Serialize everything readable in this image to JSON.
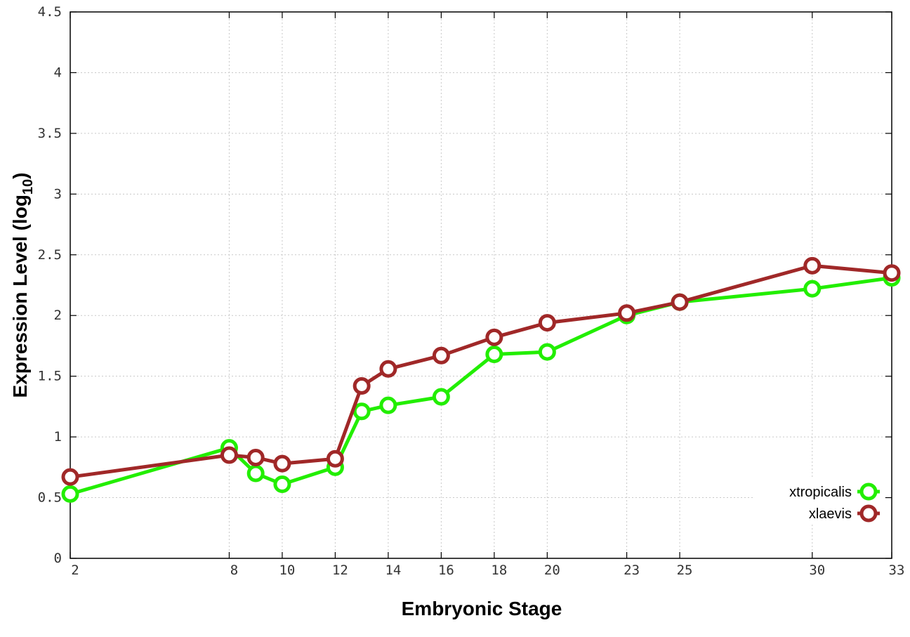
{
  "chart_data": {
    "type": "line",
    "xlabel": "Embryonic Stage",
    "ylabel_main": "Expression Level (log",
    "ylabel_sub": "10",
    "ylabel_close": ")",
    "x_ticks": [
      2,
      8,
      10,
      12,
      14,
      16,
      18,
      20,
      23,
      25,
      30,
      33
    ],
    "x_tick_labels": [
      "2",
      "8",
      "10",
      "12",
      "14",
      "16",
      "18",
      "20",
      "23",
      "25",
      "30",
      "33"
    ],
    "y_ticks": [
      0,
      0.5,
      1,
      1.5,
      2,
      2.5,
      3,
      3.5,
      4,
      4.5
    ],
    "y_tick_labels": [
      "0",
      "0.5",
      "1",
      "1.5",
      "2",
      "2.5",
      "3",
      "3.5",
      "4",
      "4.5"
    ],
    "xlim": [
      2,
      33
    ],
    "ylim": [
      0,
      4.5
    ],
    "grid": true,
    "legend_position": "bottom-right",
    "series": [
      {
        "name": "xtropicalis",
        "color": "#22ee00",
        "points": [
          [
            2,
            0.53
          ],
          [
            8,
            0.91
          ],
          [
            9,
            0.7
          ],
          [
            10,
            0.61
          ],
          [
            12,
            0.75
          ],
          [
            13,
            1.21
          ],
          [
            14,
            1.26
          ],
          [
            16,
            1.33
          ],
          [
            18,
            1.68
          ],
          [
            20,
            1.7
          ],
          [
            23,
            2.0
          ],
          [
            25,
            2.11
          ],
          [
            30,
            2.22
          ],
          [
            33,
            2.31
          ]
        ]
      },
      {
        "name": "xlaevis",
        "color": "#a02828",
        "points": [
          [
            2,
            0.67
          ],
          [
            8,
            0.85
          ],
          [
            9,
            0.83
          ],
          [
            10,
            0.78
          ],
          [
            12,
            0.82
          ],
          [
            13,
            1.42
          ],
          [
            14,
            1.56
          ],
          [
            16,
            1.67
          ],
          [
            18,
            1.82
          ],
          [
            20,
            1.94
          ],
          [
            23,
            2.02
          ],
          [
            25,
            2.11
          ],
          [
            30,
            2.41
          ],
          [
            33,
            2.35
          ]
        ]
      }
    ]
  }
}
